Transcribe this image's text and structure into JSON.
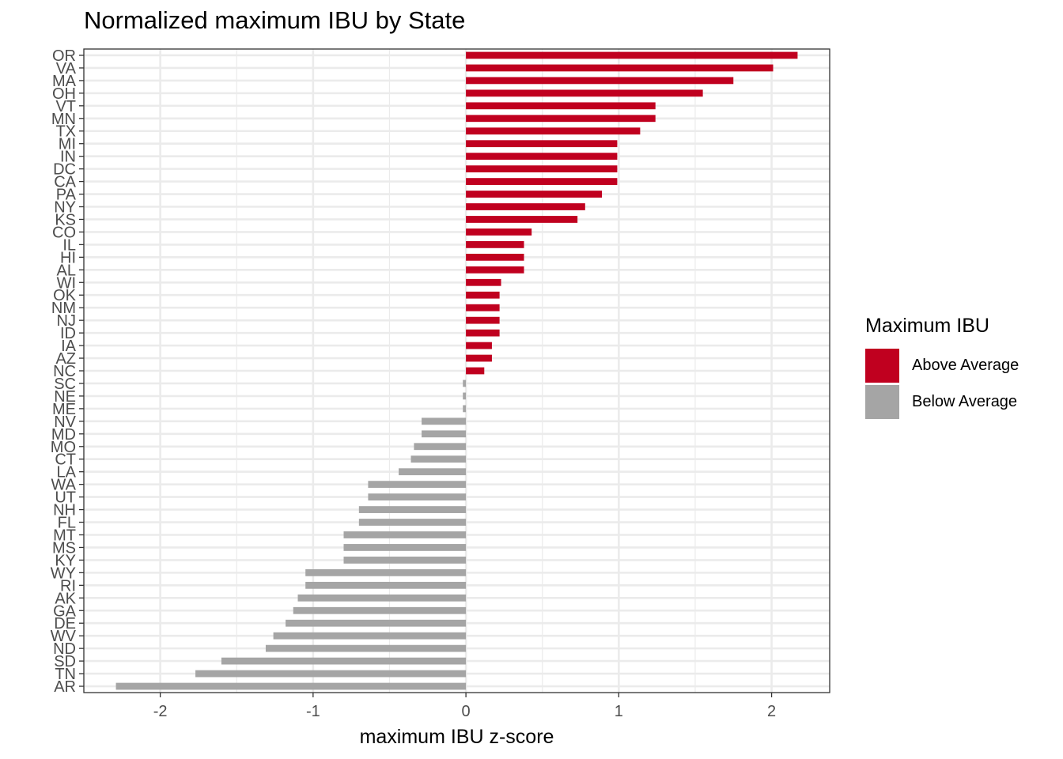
{
  "chart_data": {
    "type": "bar",
    "orientation": "horizontal",
    "title": "Normalized maximum IBU by State",
    "xlabel": "maximum IBU z-score",
    "ylabel": "",
    "xlim": [
      -2.5,
      2.38
    ],
    "xticks": [
      -2,
      -1,
      0,
      1,
      2
    ],
    "xtick_labels": [
      "-2",
      "-1",
      "0",
      "1",
      "2"
    ],
    "grid": true,
    "legend_position": "right",
    "legend": {
      "title": "Maximum IBU",
      "entries": [
        {
          "label": "Above Average",
          "color": "#c0001f"
        },
        {
          "label": "Below Average",
          "color": "#a5a5a5"
        }
      ]
    },
    "categories": [
      "OR",
      "VA",
      "MA",
      "OH",
      "VT",
      "MN",
      "TX",
      "MI",
      "IN",
      "DC",
      "CA",
      "PA",
      "NY",
      "KS",
      "CO",
      "IL",
      "HI",
      "AL",
      "WI",
      "OK",
      "NM",
      "NJ",
      "ID",
      "IA",
      "AZ",
      "NC",
      "SC",
      "NE",
      "ME",
      "NV",
      "MD",
      "MO",
      "CT",
      "LA",
      "WA",
      "UT",
      "NH",
      "FL",
      "MT",
      "MS",
      "KY",
      "WY",
      "RI",
      "AK",
      "GA",
      "DE",
      "WV",
      "ND",
      "SD",
      "TN",
      "AR"
    ],
    "values": [
      2.17,
      2.01,
      1.75,
      1.55,
      1.24,
      1.24,
      1.14,
      0.99,
      0.99,
      0.99,
      0.99,
      0.89,
      0.78,
      0.73,
      0.43,
      0.38,
      0.38,
      0.38,
      0.23,
      0.22,
      0.22,
      0.22,
      0.22,
      0.17,
      0.17,
      0.12,
      -0.02,
      -0.02,
      -0.02,
      -0.29,
      -0.29,
      -0.34,
      -0.36,
      -0.44,
      -0.64,
      -0.64,
      -0.7,
      -0.7,
      -0.8,
      -0.8,
      -0.8,
      -1.05,
      -1.05,
      -1.1,
      -1.13,
      -1.18,
      -1.26,
      -1.31,
      -1.6,
      -1.77,
      -2.29
    ],
    "colors": {
      "above": "#c0001f",
      "below": "#a5a5a5",
      "grid": "#ebebeb",
      "panel_border": "#333333"
    }
  }
}
